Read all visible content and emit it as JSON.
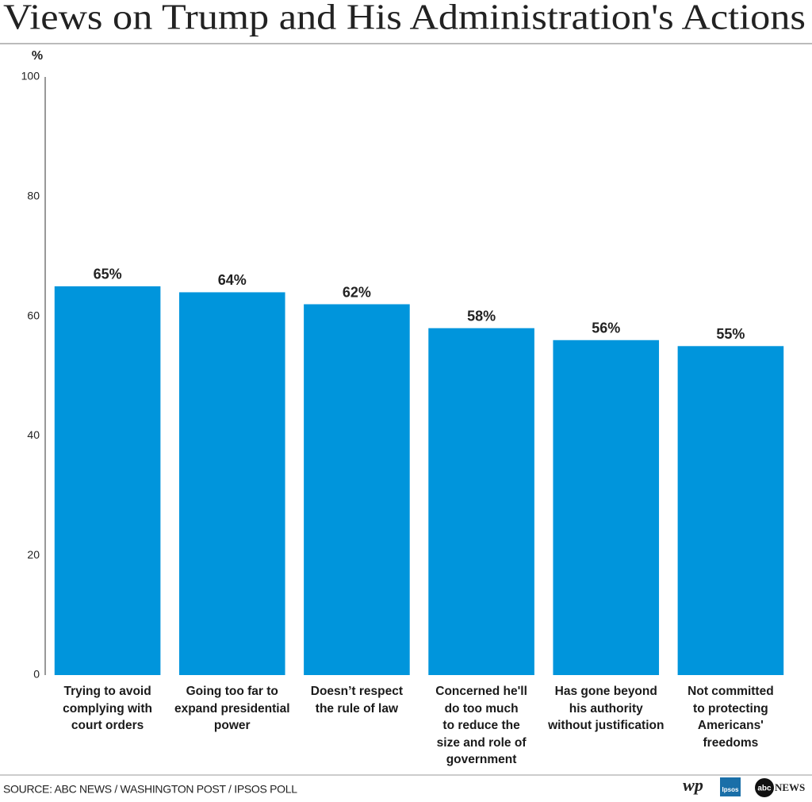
{
  "chart_data": {
    "type": "bar",
    "title": "Views on Trump and His Administration's Actions",
    "y_label": "%",
    "categories": [
      "Trying to avoid\ncomplying with\ncourt orders",
      "Going too far to\nexpand presidential\npower",
      "Doesn’t respect\nthe rule of law",
      "Concerned he'll\ndo too much\nto reduce the\nsize and role of\ngovernment",
      "Has gone beyond\nhis authority\nwithout justification",
      "Not committed\nto protecting\nAmericans'\nfreedoms"
    ],
    "values": [
      65,
      64,
      62,
      58,
      56,
      55
    ],
    "value_labels": [
      "65%",
      "64%",
      "62%",
      "58%",
      "56%",
      "55%"
    ],
    "color": "#0095dc",
    "ylim": [
      0,
      100
    ],
    "yticks": [
      0,
      20,
      40,
      60,
      80,
      100
    ],
    "grid": false,
    "source": "SOURCE: ABC NEWS / WASHINGTON POST / IPSOS POLL",
    "logos": [
      "wp",
      "Ipsos",
      "abc",
      "NEWS"
    ]
  }
}
